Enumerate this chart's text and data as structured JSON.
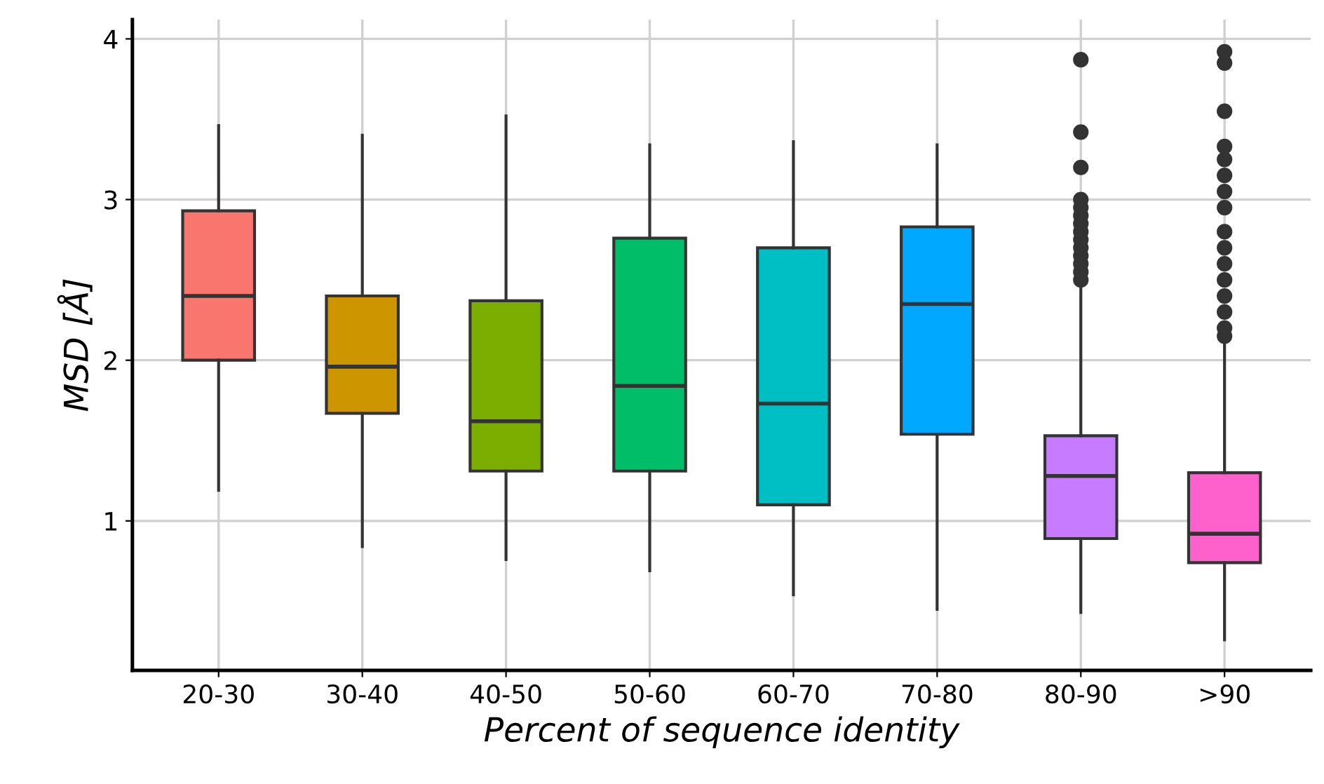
{
  "chart_data": {
    "type": "box",
    "xlabel": "Percent of sequence identity",
    "ylabel": "MSD [Å]",
    "categories": [
      "20-30",
      "30-40",
      "40-50",
      "50-60",
      "60-70",
      "70-80",
      "80-90",
      ">90"
    ],
    "colors": [
      "#f8766d",
      "#cd9600",
      "#7cae00",
      "#00be67",
      "#00bfc4",
      "#00a9ff",
      "#c77cff",
      "#ff61cc"
    ],
    "boxes": [
      {
        "low": 1.19,
        "q1": 2.0,
        "median": 2.4,
        "q3": 2.93,
        "high": 3.46
      },
      {
        "low": 0.84,
        "q1": 1.67,
        "median": 1.96,
        "q3": 2.4,
        "high": 3.4
      },
      {
        "low": 0.76,
        "q1": 1.31,
        "median": 1.62,
        "q3": 2.37,
        "high": 3.52
      },
      {
        "low": 0.69,
        "q1": 1.31,
        "median": 1.84,
        "q3": 2.76,
        "high": 3.34
      },
      {
        "low": 0.54,
        "q1": 1.1,
        "median": 1.73,
        "q3": 2.7,
        "high": 3.36
      },
      {
        "low": 0.45,
        "q1": 1.54,
        "median": 2.35,
        "q3": 2.83,
        "high": 3.34
      },
      {
        "low": 0.43,
        "q1": 0.89,
        "median": 1.28,
        "q3": 1.53,
        "high": 2.46,
        "outliers": [
          2.5,
          2.55,
          2.6,
          2.65,
          2.7,
          2.75,
          2.8,
          2.85,
          2.9,
          2.95,
          3.0,
          3.2,
          3.42,
          3.87
        ]
      },
      {
        "low": 0.26,
        "q1": 0.74,
        "median": 0.92,
        "q3": 1.3,
        "high": 2.14,
        "outliers": [
          2.15,
          2.2,
          2.3,
          2.4,
          2.5,
          2.6,
          2.7,
          2.8,
          2.95,
          3.05,
          3.15,
          3.25,
          3.33,
          3.55,
          3.85,
          3.92
        ]
      }
    ],
    "ylim": [
      0.07,
      4.12
    ],
    "yticks": [
      1,
      2,
      3,
      4
    ],
    "grid": true
  }
}
